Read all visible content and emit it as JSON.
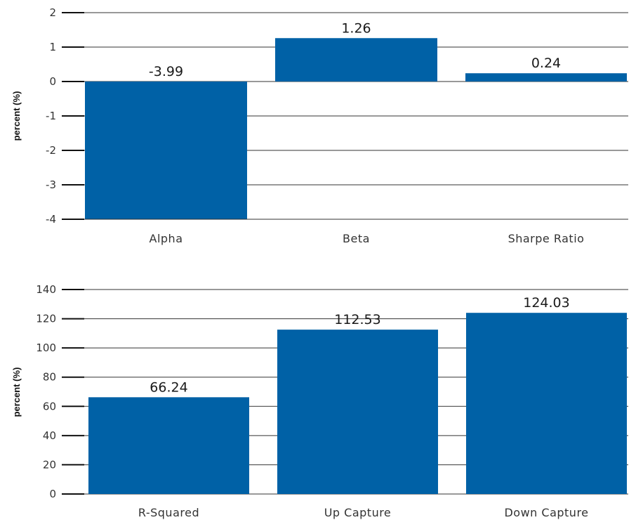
{
  "chart_data": [
    {
      "type": "bar",
      "ylabel": "percent (%)",
      "ylim": [
        -4,
        2
      ],
      "yticks": [
        2,
        1,
        0,
        -1,
        -2,
        -3,
        -4
      ],
      "grid": true,
      "categories": [
        "Alpha",
        "Beta",
        "Sharpe Ratio"
      ],
      "values": [
        -3.99,
        1.26,
        0.24
      ],
      "data_labels": [
        "-3.99",
        "1.26",
        "0.24"
      ],
      "bar_color": "#0061a6"
    },
    {
      "type": "bar",
      "ylabel": "percent (%)",
      "ylim": [
        0,
        140
      ],
      "yticks": [
        140,
        120,
        100,
        80,
        60,
        40,
        20,
        0
      ],
      "grid": true,
      "categories": [
        "R-Squared",
        "Up Capture",
        "Down Capture"
      ],
      "values": [
        66.24,
        112.53,
        124.03
      ],
      "data_labels": [
        "66.24",
        "112.53",
        "124.03"
      ],
      "bar_color": "#0061a6"
    }
  ]
}
